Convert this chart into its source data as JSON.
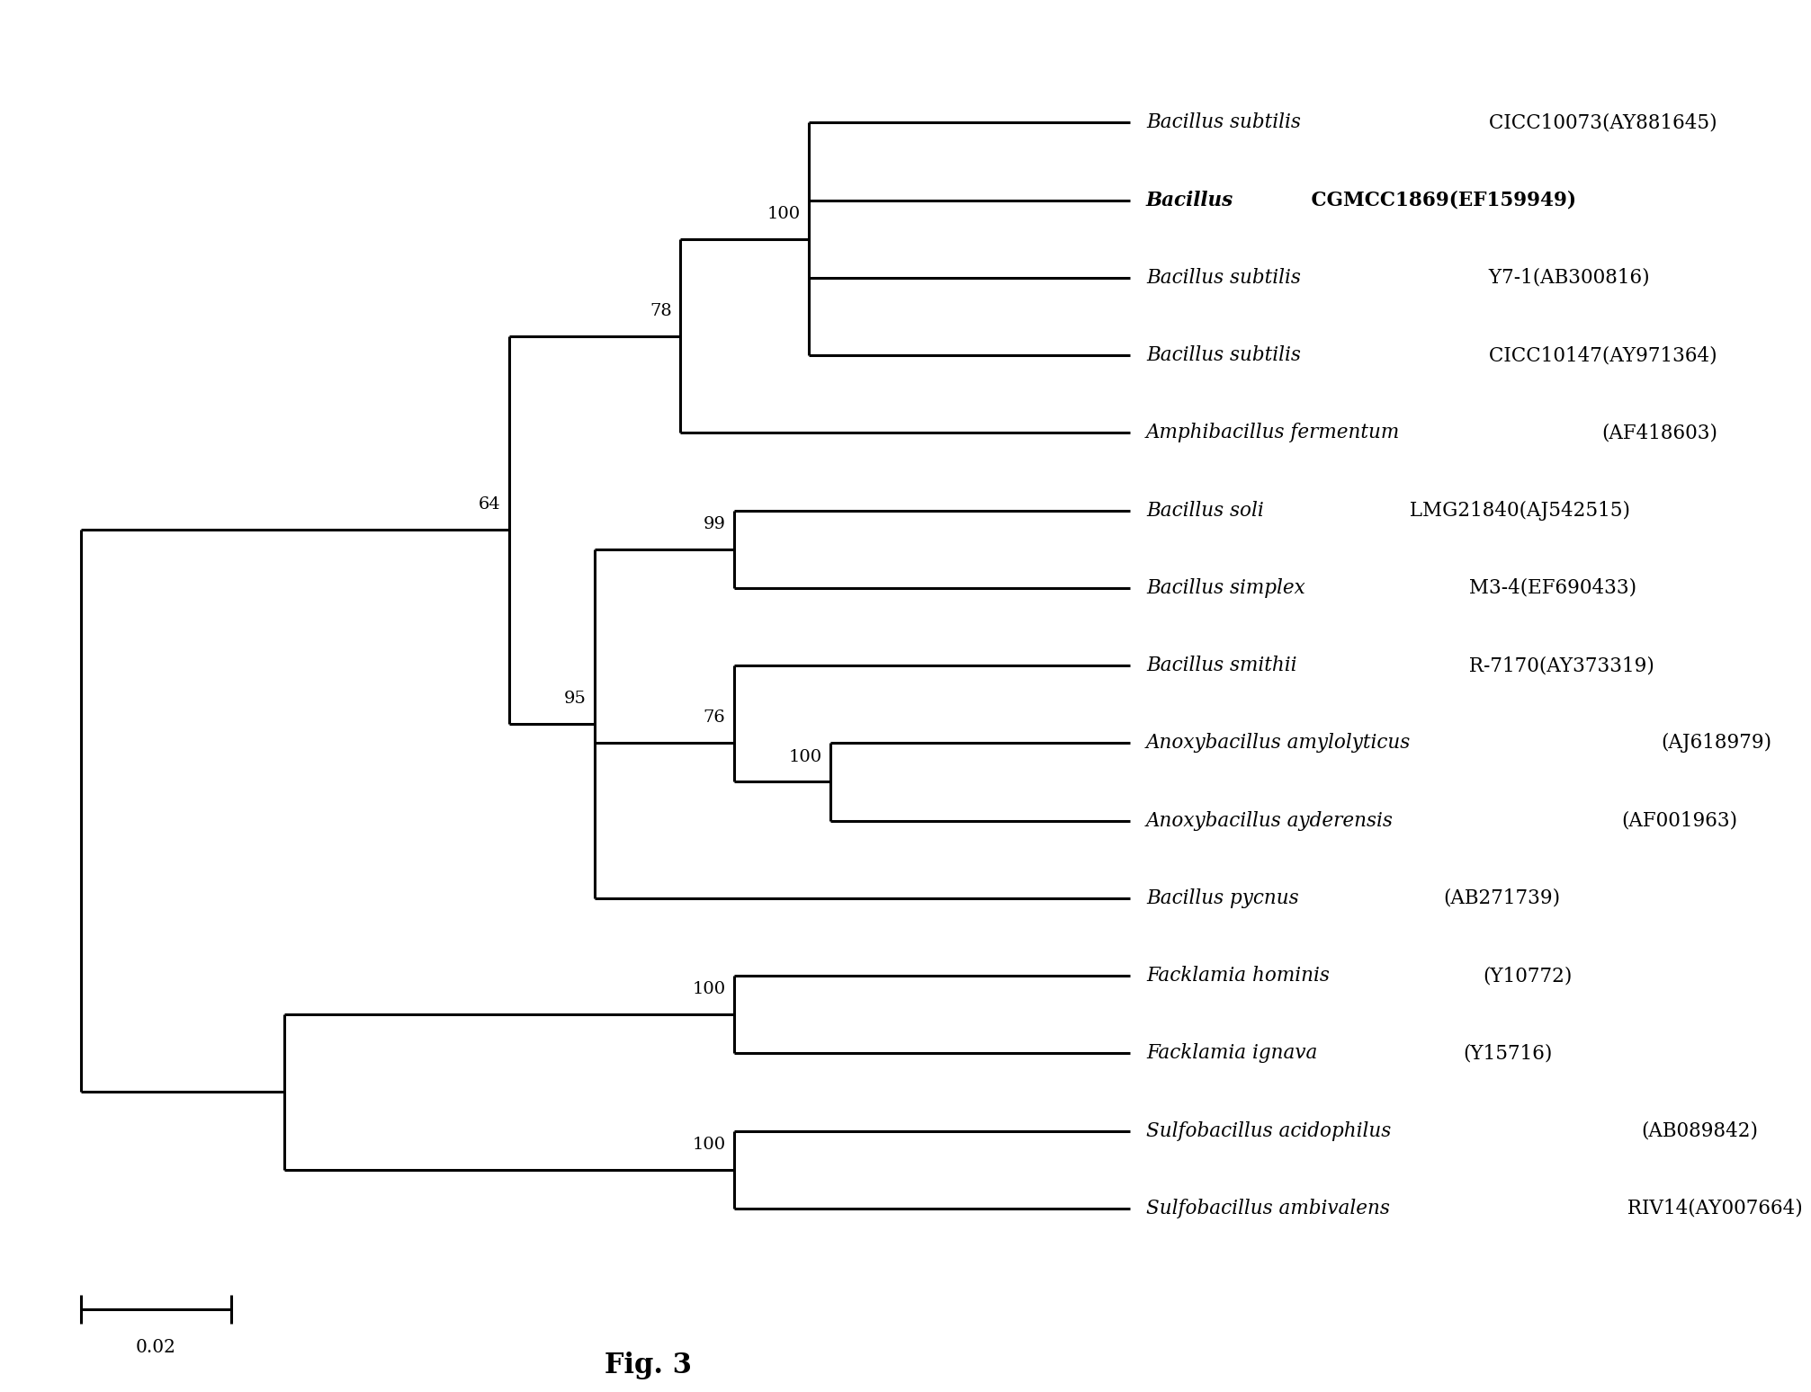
{
  "title": "Fig. 3",
  "background_color": "#ffffff",
  "figsize": [
    20.13,
    15.48
  ],
  "taxa": [
    {
      "italic": "Bacillus subtilis",
      "roman": " CICC10073(AY881645)",
      "bold": false
    },
    {
      "italic": "Bacillus",
      "roman": " CGMCC1869(EF159949)",
      "bold": true
    },
    {
      "italic": "Bacillus subtilis",
      "roman": " Y7-1(AB300816)",
      "bold": false
    },
    {
      "italic": "Bacillus subtilis",
      "roman": " CICC10147(AY971364)",
      "bold": false
    },
    {
      "italic": "Amphibacillus fermentum",
      "roman": "(AF418603)",
      "bold": false
    },
    {
      "italic": "Bacillus soli",
      "roman": " LMG21840(AJ542515)",
      "bold": false
    },
    {
      "italic": "Bacillus simplex",
      "roman": " M3-4(EF690433)",
      "bold": false
    },
    {
      "italic": "Bacillus smithii",
      "roman": " R-7170(AY373319)",
      "bold": false
    },
    {
      "italic": "Anoxybacillus amylolyticus",
      "roman": "(AJ618979)",
      "bold": false
    },
    {
      "italic": "Anoxybacillus ayderensis",
      "roman": "(AF001963)",
      "bold": false
    },
    {
      "italic": "Bacillus pycnus",
      "roman": "(AB271739)",
      "bold": false
    },
    {
      "italic": "Facklamia hominis",
      "roman": "(Y10772)",
      "bold": false
    },
    {
      "italic": "Facklamia ignava",
      "roman": "(Y15716)",
      "bold": false
    },
    {
      "italic": "Sulfobacillus acidophilus",
      "roman": "(AB089842)",
      "bold": false
    },
    {
      "italic": "Sulfobacillus ambivalens",
      "roman": " RIV14(AY007664)",
      "bold": false
    }
  ],
  "line_color": "#000000",
  "line_width": 2.2,
  "label_fontsize": 15.5,
  "bootstrap_fontsize": 14.0,
  "title_fontsize": 22,
  "scale_label": "0.02"
}
